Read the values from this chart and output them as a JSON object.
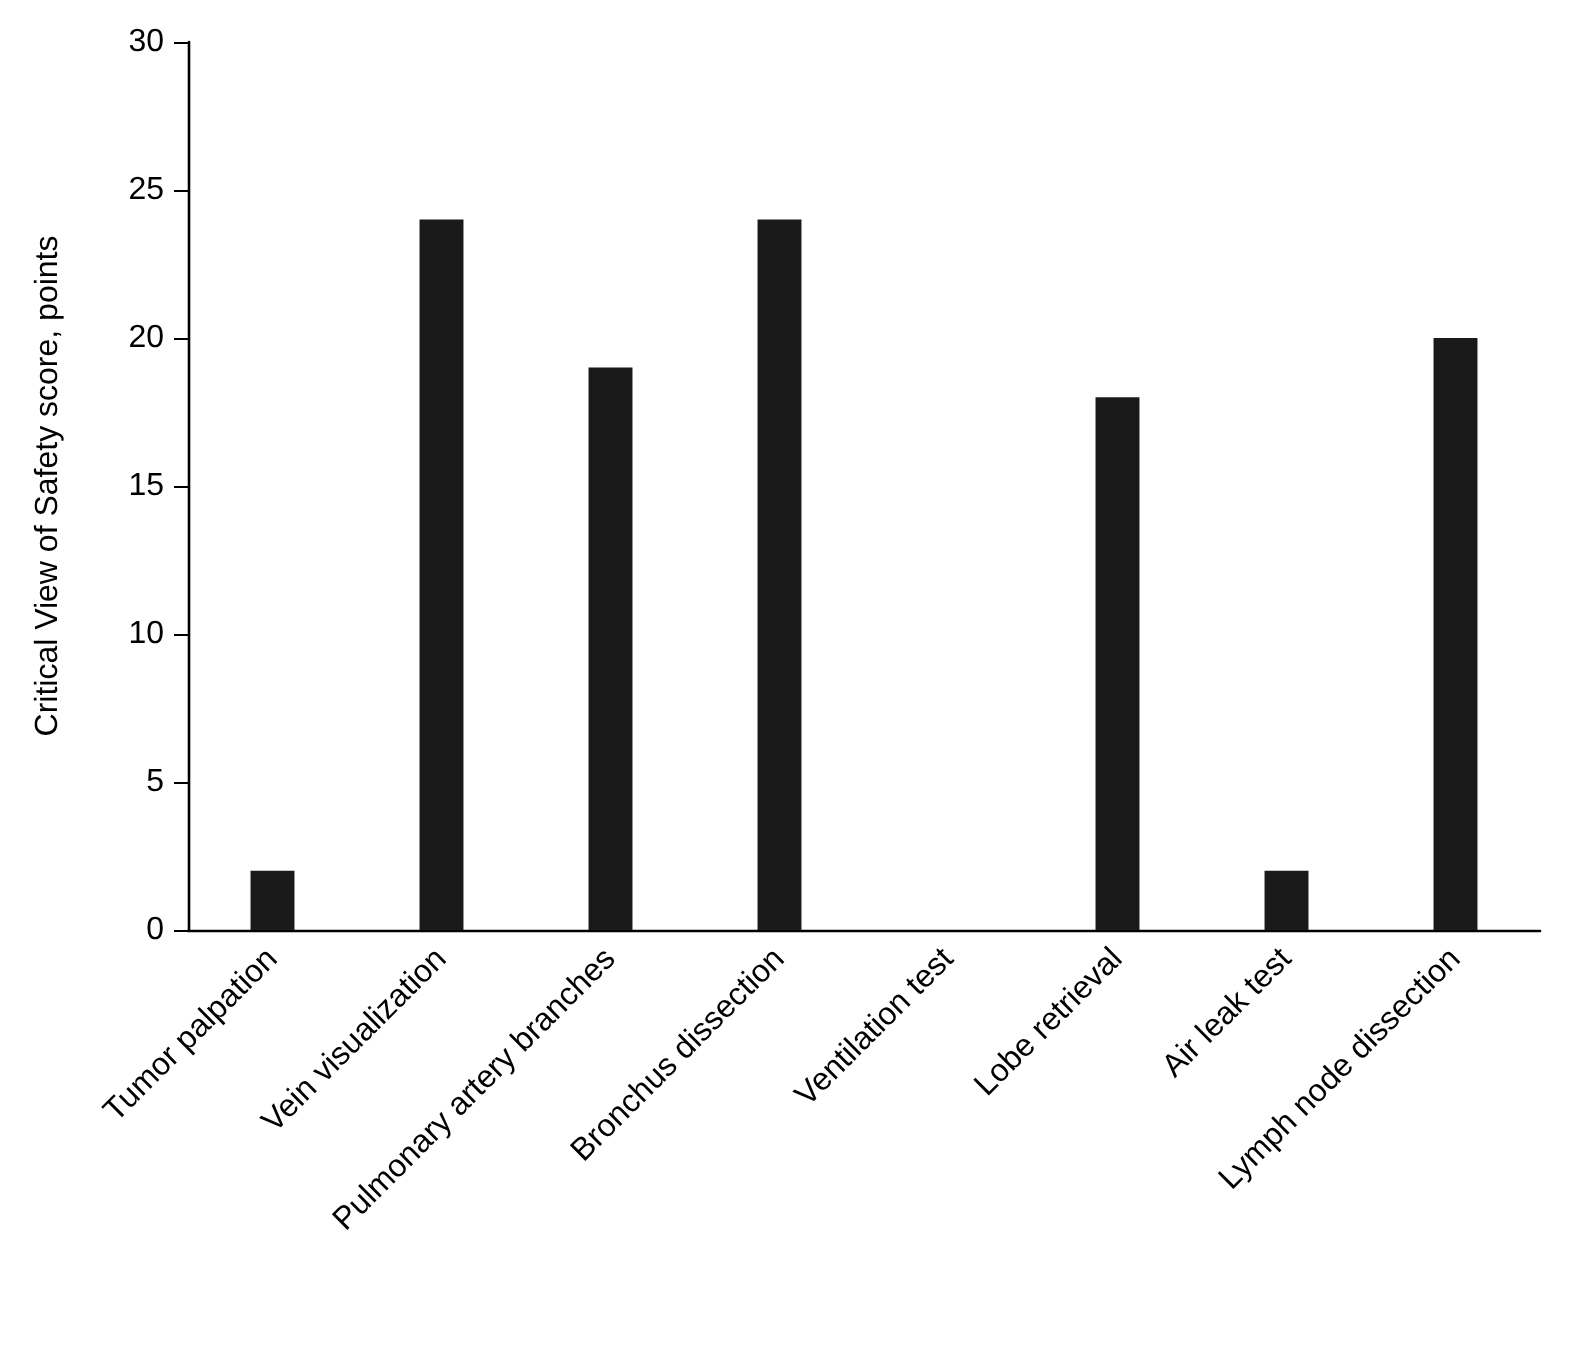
{
  "chart_data": {
    "type": "bar",
    "ylabel": "Critical View of Safety score, points",
    "categories": [
      "Tumor palpation",
      "Vein visualization",
      "Pulmonary artery branches",
      "Bronchus dissection",
      "Ventilation test",
      "Lobe retrieval",
      "Air leak test",
      "Lymph node dissection"
    ],
    "values": [
      2,
      24,
      19,
      24,
      0,
      18,
      2,
      20
    ],
    "color": "#1a1a1a",
    "ylim": [
      0,
      30
    ],
    "yticks": [
      0,
      5,
      10,
      15,
      20,
      25,
      30
    ]
  }
}
